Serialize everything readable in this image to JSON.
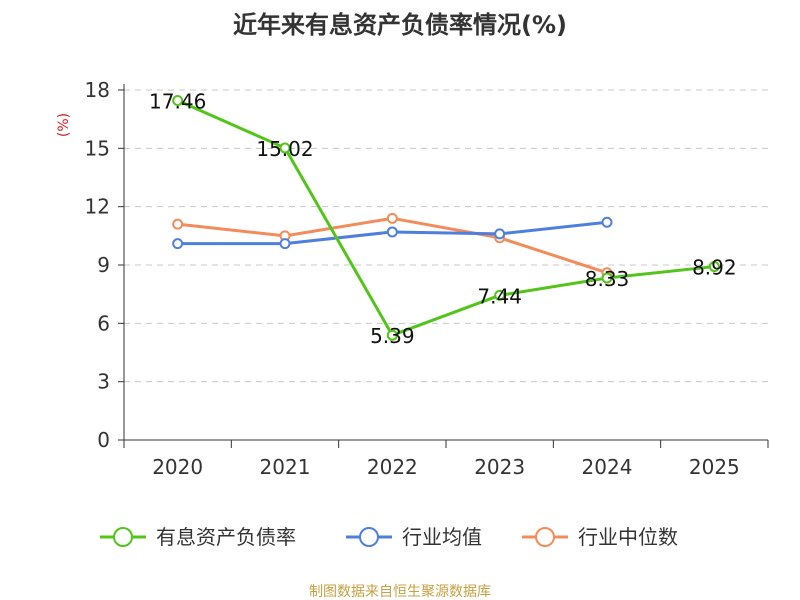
{
  "chart_data": {
    "type": "line",
    "title": "近年来有息资产负债率情况(%)",
    "ylabel": "(%)",
    "xlabel": "",
    "categories": [
      "2020",
      "2021",
      "2022",
      "2023",
      "2024",
      "2025"
    ],
    "ylim": [
      0,
      18
    ],
    "yticks": [
      0,
      3,
      6,
      9,
      12,
      15,
      18
    ],
    "grid": true,
    "legend_position": "bottom",
    "series": [
      {
        "name": "有息资产负债率",
        "color": "#52c41a",
        "values": [
          17.46,
          15.02,
          5.39,
          7.44,
          8.33,
          8.92
        ],
        "labels": [
          "17.46",
          "15.02",
          "5.39",
          "7.44",
          "8.33",
          "8.92"
        ]
      },
      {
        "name": "行业均值",
        "color": "#4e7fdc",
        "values": [
          10.1,
          10.1,
          10.7,
          10.6,
          11.2,
          null
        ]
      },
      {
        "name": "行业中位数",
        "color": "#f28c5a",
        "values": [
          11.1,
          10.5,
          11.4,
          10.4,
          8.6,
          null
        ]
      }
    ],
    "source": "制图数据来自恒生聚源数据库",
    "source_color": "#c8a040",
    "ylabel_color": "#d42020"
  }
}
